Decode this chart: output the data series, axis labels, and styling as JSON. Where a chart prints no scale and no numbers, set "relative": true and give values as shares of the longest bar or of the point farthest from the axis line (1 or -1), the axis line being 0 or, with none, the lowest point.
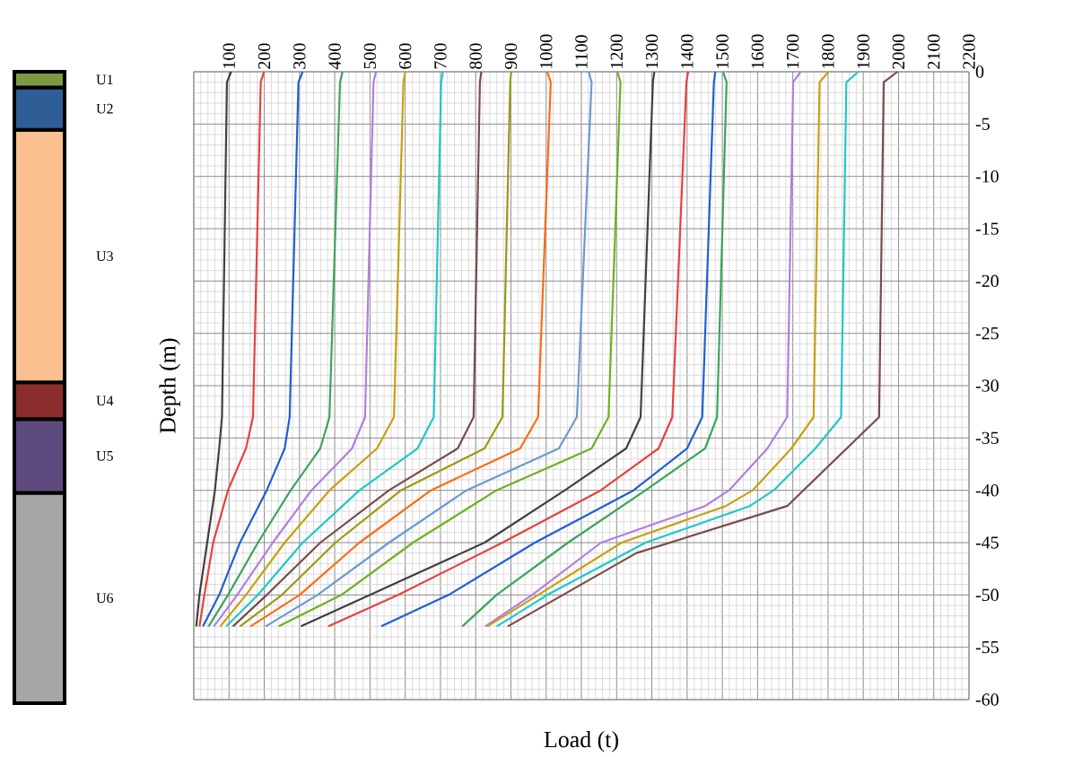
{
  "chart_data": [
    {
      "type": "line",
      "xlabel": "Load (t)",
      "ylabel": "Depth (m)",
      "grid": true,
      "line_style": "solid",
      "marker": "none",
      "xlim": [
        0,
        2200
      ],
      "xticks": [
        {
          "value": 0,
          "label": null
        },
        100,
        200,
        300,
        400,
        500,
        600,
        700,
        800,
        900,
        1000,
        1100,
        1200,
        1300,
        1400,
        1500,
        1600,
        1700,
        1800,
        1900,
        2000,
        2100,
        2200
      ],
      "ylim": [
        -60,
        0
      ],
      "yticks": [
        0,
        -5,
        -10,
        -15,
        -20,
        -25,
        -30,
        -35,
        -40,
        -45,
        -50,
        -55,
        -60
      ],
      "series": [
        {
          "color": "#404040",
          "x": [
            106,
            94,
            80,
            72,
            60,
            38,
            16,
            7
          ],
          "values": [
            0,
            -1,
            -33,
            -36,
            -40,
            -45,
            -50,
            -53
          ]
        },
        {
          "color": "#e8413c",
          "x": [
            199,
            190,
            168,
            148,
            97,
            55,
            30,
            16
          ],
          "values": [
            0,
            -1,
            -33,
            -36,
            -40,
            -45,
            -50,
            -53
          ]
        },
        {
          "color": "#1f5fd6",
          "x": [
            309,
            297,
            272,
            258,
            207,
            131,
            72,
            26
          ],
          "values": [
            0,
            -1,
            -33,
            -36,
            -40,
            -45,
            -50,
            -53
          ]
        },
        {
          "color": "#3aa55d",
          "x": [
            422,
            415,
            385,
            359,
            275,
            182,
            97,
            42
          ],
          "values": [
            0,
            -1,
            -33,
            -36,
            -40,
            -45,
            -50,
            -53
          ]
        },
        {
          "color": "#b07ee0",
          "x": [
            517,
            510,
            486,
            449,
            334,
            224,
            123,
            57
          ],
          "values": [
            0,
            -1,
            -33,
            -36,
            -40,
            -45,
            -50,
            -53
          ]
        },
        {
          "color": "#c8a010",
          "x": [
            600,
            595,
            568,
            520,
            385,
            258,
            148,
            75
          ],
          "values": [
            0,
            -1,
            -33,
            -36,
            -40,
            -45,
            -50,
            -53
          ]
        },
        {
          "color": "#1ec8c8",
          "x": [
            707,
            702,
            681,
            635,
            470,
            309,
            182,
            92
          ],
          "values": [
            0,
            -1,
            -33,
            -36,
            -40,
            -45,
            -50,
            -53
          ]
        },
        {
          "color": "#7a4a4a",
          "x": [
            816,
            812,
            794,
            749,
            554,
            359,
            207,
            111
          ],
          "values": [
            0,
            -1,
            -33,
            -36,
            -40,
            -45,
            -50,
            -53
          ]
        },
        {
          "color": "#9a9a10",
          "x": [
            901,
            898,
            876,
            825,
            588,
            402,
            250,
            131
          ],
          "values": [
            0,
            -1,
            -33,
            -36,
            -40,
            -45,
            -50,
            -53
          ]
        },
        {
          "color": "#ff6a10",
          "x": [
            1003,
            1013,
            977,
            926,
            673,
            470,
            300,
            161
          ],
          "values": [
            0,
            -1,
            -33,
            -36,
            -40,
            -45,
            -50,
            -53
          ]
        },
        {
          "color": "#6a9ad0",
          "x": [
            1121,
            1129,
            1087,
            1036,
            774,
            554,
            351,
            204
          ],
          "values": [
            0,
            -1,
            -33,
            -36,
            -40,
            -45,
            -50,
            -53
          ]
        },
        {
          "color": "#70b020",
          "x": [
            1202,
            1211,
            1177,
            1129,
            859,
            622,
            419,
            241
          ],
          "values": [
            0,
            -1,
            -33,
            -36,
            -40,
            -45,
            -50,
            -53
          ]
        },
        {
          "color": "#404040",
          "x": [
            1307,
            1303,
            1268,
            1227,
            1053,
            825,
            500,
            304
          ],
          "values": [
            0,
            -1,
            -33,
            -36,
            -40,
            -45,
            -50,
            -53
          ]
        },
        {
          "color": "#e8413c",
          "x": [
            1403,
            1398,
            1358,
            1319,
            1155,
            876,
            580,
            382
          ],
          "values": [
            0,
            -1,
            -33,
            -36,
            -40,
            -45,
            -50,
            -53
          ]
        },
        {
          "color": "#1f5fd6",
          "x": [
            1480,
            1476,
            1443,
            1400,
            1248,
            968,
            723,
            532
          ],
          "values": [
            0,
            -1,
            -33,
            -36,
            -40,
            -45,
            -50,
            -53
          ]
        },
        {
          "color": "#3aa55d",
          "x": [
            1502,
            1512,
            1485,
            1451,
            1282,
            1062,
            859,
            762
          ],
          "values": [
            0,
            -1,
            -33,
            -36,
            -40,
            -45,
            -50,
            -53
          ]
        },
        {
          "color": "#b07ee0",
          "x": [
            1722,
            1701,
            1684,
            1628,
            1519,
            1451,
            1156,
            960,
            827
          ],
          "values": [
            0,
            -1,
            -33,
            -36,
            -40,
            -41.5,
            -45,
            -50,
            -53
          ]
        },
        {
          "color": "#c8a010",
          "x": [
            1801,
            1776,
            1759,
            1696,
            1586,
            1510,
            1214,
            977,
            833
          ],
          "values": [
            0,
            -1,
            -33,
            -36,
            -40,
            -41.5,
            -45,
            -50,
            -53
          ]
        },
        {
          "color": "#1ec8c8",
          "x": [
            1886,
            1852,
            1837,
            1764,
            1646,
            1578,
            1282,
            1003,
            860
          ],
          "values": [
            0,
            -1,
            -33,
            -36,
            -40,
            -41.5,
            -45,
            -50,
            -53
          ]
        },
        {
          "color": "#7a4a4a",
          "x": [
            1997,
            1958,
            1945,
            1684,
            1256,
            891
          ],
          "values": [
            0,
            -1,
            -33,
            -41.5,
            -46,
            -53
          ]
        }
      ]
    },
    {
      "type": "bar",
      "stacked": true,
      "relative": true,
      "categories": [
        null
      ],
      "series": [
        {
          "name": "U1",
          "color": "#7a9a40",
          "values": [
            -0.025
          ]
        },
        {
          "name": "U2",
          "color": "#2e5e95",
          "values": [
            -0.067
          ]
        },
        {
          "name": "U3",
          "color": "#f9bf8f",
          "values": [
            -0.4
          ]
        },
        {
          "name": "U4",
          "color": "#8b2d2d",
          "values": [
            -0.058
          ]
        },
        {
          "name": "U5",
          "color": "#5e4a7e",
          "values": [
            -0.117
          ]
        },
        {
          "name": "U6",
          "color": "#a6a6a6",
          "values": [
            -0.333
          ]
        }
      ]
    }
  ]
}
